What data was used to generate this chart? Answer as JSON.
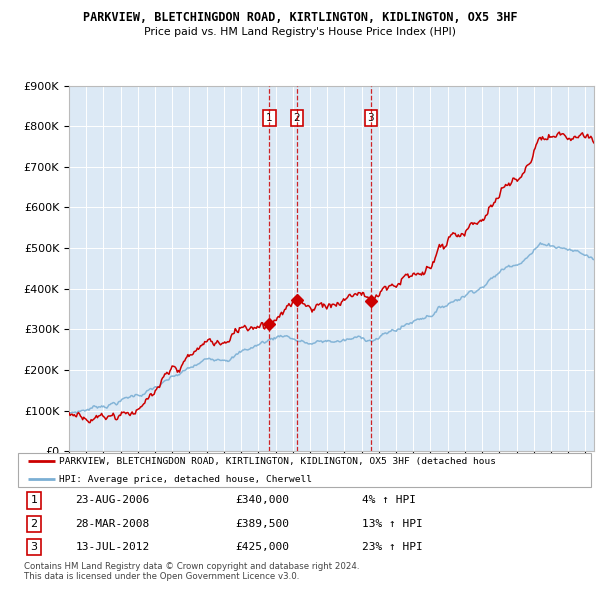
{
  "title1": "PARKVIEW, BLETCHINGDON ROAD, KIRTLINGTON, KIDLINGTON, OX5 3HF",
  "title2": "Price paid vs. HM Land Registry's House Price Index (HPI)",
  "legend_red": "PARKVIEW, BLETCHINGDON ROAD, KIRTLINGTON, KIDLINGTON, OX5 3HF (detached hous",
  "legend_blue": "HPI: Average price, detached house, Cherwell",
  "transactions": [
    {
      "label": "1",
      "date": "23-AUG-2006",
      "price": 340000,
      "pct": "4%",
      "dir": "↑",
      "x_year": 2006.644
    },
    {
      "label": "2",
      "date": "28-MAR-2008",
      "price": 389500,
      "pct": "13%",
      "dir": "↑",
      "x_year": 2008.239
    },
    {
      "label": "3",
      "date": "13-JUL-2012",
      "price": 425000,
      "pct": "23%",
      "dir": "↑",
      "x_year": 2012.534
    }
  ],
  "footnote1": "Contains HM Land Registry data © Crown copyright and database right 2024.",
  "footnote2": "This data is licensed under the Open Government Licence v3.0.",
  "ylim": [
    0,
    900000
  ],
  "xlim_start": 1995.0,
  "xlim_end": 2025.5,
  "plot_bg": "#dce9f5",
  "red_color": "#cc0000",
  "blue_color": "#7bafd4",
  "grid_color": "#ffffff"
}
